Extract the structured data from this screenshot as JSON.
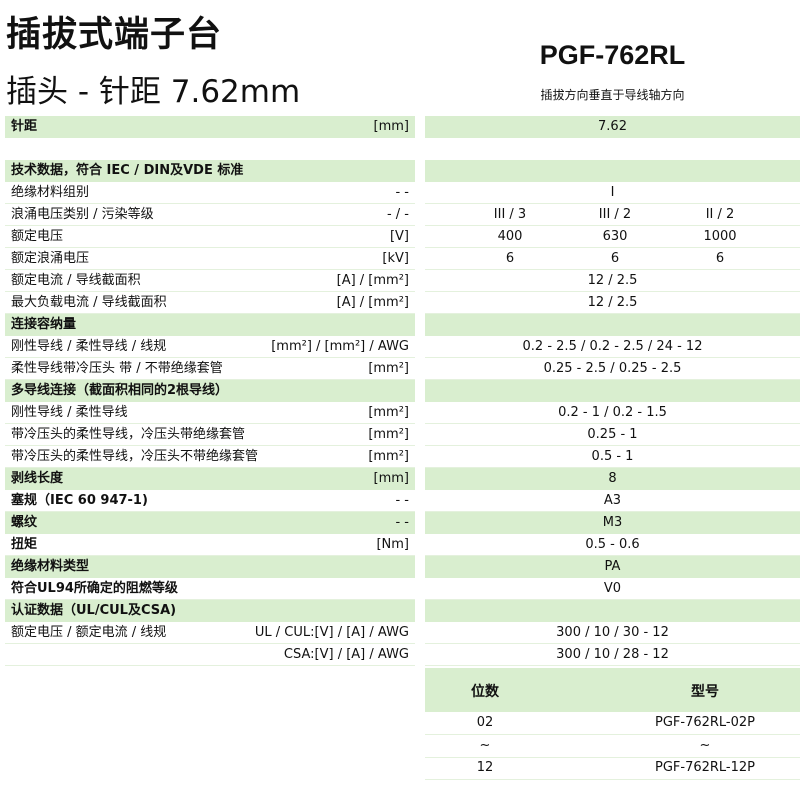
{
  "header": {
    "title": "插拔式端子台",
    "subtitle": "插头 - 针距  7.62mm",
    "model": "PGF-762RL",
    "model_note": "插拔方向垂直于导线轴方向"
  },
  "colors": {
    "section_bg": "#d9eecf",
    "divider": "#e4f1dd"
  },
  "rows": [
    {
      "type": "green",
      "bold": true,
      "label": "针距",
      "unit": "[mm]",
      "value": "7.62"
    },
    {
      "type": "blank"
    },
    {
      "type": "green",
      "bold": true,
      "label": "技术数据，符合 IEC / DIN及VDE 标准",
      "unit": "",
      "value": ""
    },
    {
      "type": "white",
      "label": "绝缘材料组别",
      "unit": "- -",
      "value": "I"
    },
    {
      "type": "white",
      "label": "浪涌电压类别 / 污染等级",
      "unit": "- / -",
      "values": [
        "III / 3",
        "III / 2",
        "II / 2"
      ]
    },
    {
      "type": "white",
      "label": "额定电压",
      "unit": "[V]",
      "values": [
        "400",
        "630",
        "1000"
      ]
    },
    {
      "type": "white",
      "label": "额定浪涌电压",
      "unit": "[kV]",
      "values": [
        "6",
        "6",
        "6"
      ]
    },
    {
      "type": "white",
      "label": "额定电流 / 导线截面积",
      "unit": "[A] / [mm²]",
      "value": "12 / 2.5"
    },
    {
      "type": "white",
      "label": "最大负载电流 / 导线截面积",
      "unit": "[A] / [mm²]",
      "value": "12 / 2.5"
    },
    {
      "type": "green",
      "bold": true,
      "label": "连接容纳量",
      "unit": "",
      "value": ""
    },
    {
      "type": "white",
      "label": "刚性导线 / 柔性导线 / 线规",
      "unit": "[mm²] / [mm²] / AWG",
      "value": "0.2 - 2.5 / 0.2 - 2.5 / 24 - 12"
    },
    {
      "type": "white",
      "label": "柔性导线带冷压头 带 / 不带绝缘套管",
      "unit": "[mm²]",
      "value": "0.25 - 2.5 / 0.25 - 2.5"
    },
    {
      "type": "green",
      "bold": true,
      "label": "多导线连接（截面积相同的2根导线）",
      "unit": "",
      "value": ""
    },
    {
      "type": "white",
      "label": "刚性导线 / 柔性导线",
      "unit": "[mm²]",
      "value": "0.2 - 1 / 0.2 - 1.5"
    },
    {
      "type": "white",
      "label": "带冷压头的柔性导线，冷压头带绝缘套管",
      "unit": "[mm²]",
      "value": "0.25 - 1"
    },
    {
      "type": "white",
      "label": "带冷压头的柔性导线，冷压头不带绝缘套管",
      "unit": "[mm²]",
      "value": "0.5 - 1"
    },
    {
      "type": "green",
      "bold": true,
      "label": "剥线长度",
      "unit": "[mm]",
      "value": "8"
    },
    {
      "type": "white",
      "bold": true,
      "label": "塞规（IEC 60 947-1)",
      "unit": "- -",
      "value": "A3"
    },
    {
      "type": "green",
      "bold": true,
      "label": "螺纹",
      "unit": "- -",
      "value": "M3"
    },
    {
      "type": "white",
      "bold": true,
      "label": "扭矩",
      "unit": "[Nm]",
      "value": "0.5 - 0.6"
    },
    {
      "type": "green",
      "bold": true,
      "label": "绝缘材料类型",
      "unit": "",
      "value": "PA"
    },
    {
      "type": "white",
      "bold": true,
      "label": "符合UL94所确定的阻燃等级",
      "unit": "",
      "value": "V0"
    },
    {
      "type": "green",
      "bold": true,
      "label": "认证数据（UL/CUL及CSA)",
      "unit": "",
      "value": ""
    },
    {
      "type": "white",
      "label": "额定电压 / 额定电流 / 线规",
      "unit": "UL / CUL:[V] / [A] / AWG",
      "value": "300 / 10 / 30 - 12"
    },
    {
      "type": "white",
      "label": "",
      "unit": "CSA:[V] / [A] / AWG",
      "value": "300 / 10 / 28 - 12"
    }
  ],
  "order_table": {
    "headers": [
      "位数",
      "型号"
    ],
    "rows": [
      [
        "02",
        "PGF-762RL-02P"
      ],
      [
        "~",
        "~"
      ],
      [
        "12",
        "PGF-762RL-12P"
      ]
    ]
  }
}
